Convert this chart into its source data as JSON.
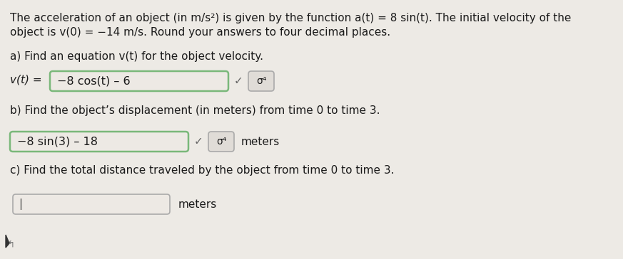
{
  "bg_color": "#edeae5",
  "text_color": "#1a1a1a",
  "line1": "The acceleration of an object (in m/s²) is given by the function a(t) = 8 sin(t). The initial velocity of the",
  "line2": "object is v(0) = −14 m/s. Round your answers to four decimal places.",
  "part_a_label": "a) Find an equation v(t) for the object velocity.",
  "part_a_lhs": "v(t) =",
  "part_a_box_content": "−8 cos(t) – 6",
  "part_a_checkmark": "✓",
  "part_a_sigma": "σ⁴",
  "part_b_label": "b) Find the object’s displacement (in meters) from time 0 to time 3.",
  "part_b_box_content": "−8 sin(3) – 18",
  "part_b_checkmark": "✓",
  "part_b_sigma": "σ⁴",
  "part_b_units": "meters",
  "part_c_label": "c) Find the total distance traveled by the object from time 0 to time 3.",
  "part_c_cursor": "|",
  "part_c_units": "meters",
  "box_green": "#7ab87a",
  "box_gray": "#aaaaaa",
  "box_bg": "#ede9e4",
  "sigma_bg": "#e0dcd7",
  "check_color": "#666666",
  "font_size_main": 11.0,
  "font_size_box": 11.5
}
